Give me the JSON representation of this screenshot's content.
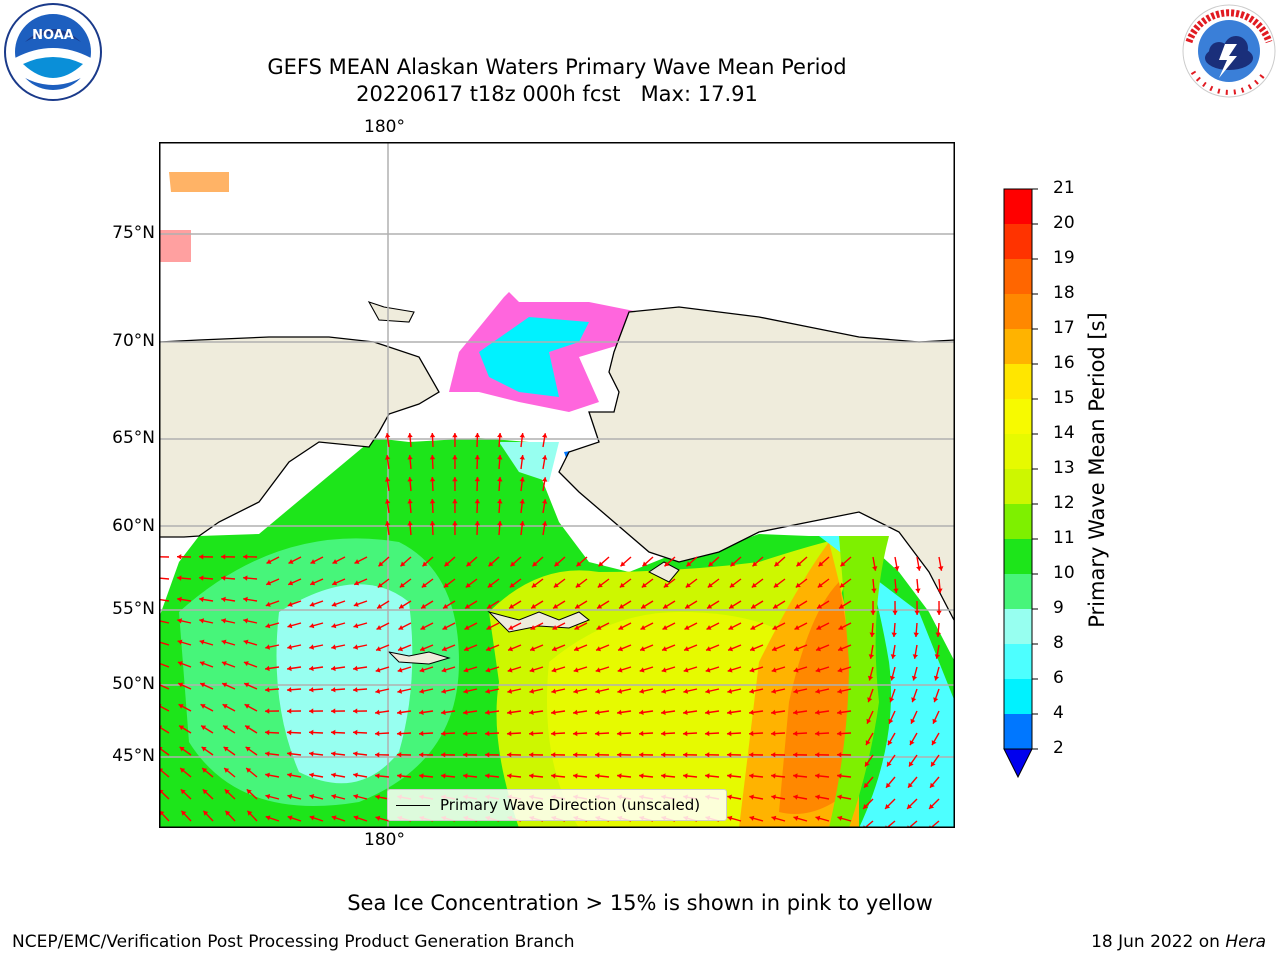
{
  "title": {
    "line1": "GEFS MEAN Alaskan Waters Primary Wave Mean Period",
    "line2": "20220617 t18z 000h fcst   Max: 17.91"
  },
  "logos": {
    "left": "NOAA",
    "right": "NATIONAL WEATHER SERVICE"
  },
  "map": {
    "top_lon_label": "180°",
    "bottom_lon_label": "180°",
    "lat_labels": [
      "75°N",
      "70°N",
      "65°N",
      "60°N",
      "55°N",
      "50°N",
      "45°N"
    ],
    "land_color": "#efecdc",
    "arrow_color": "#ff0000",
    "legend_text": "Primary Wave Direction (unscaled)"
  },
  "colorbar": {
    "title": "Primary Wave Mean Period [s]",
    "ticks": [
      "21",
      "20",
      "19",
      "18",
      "17",
      "16",
      "15",
      "14",
      "13",
      "12",
      "11",
      "10",
      "9",
      "8",
      "6",
      "4",
      "2"
    ],
    "colors": [
      "#ff0000",
      "#ff3300",
      "#ff6600",
      "#ff8800",
      "#ffb300",
      "#ffe600",
      "#f7fa00",
      "#e6fa00",
      "#cdf700",
      "#7ef000",
      "#1de51a",
      "#47f57a",
      "#97fff0",
      "#4dffff",
      "#00f2ff",
      "#0077ff",
      "#0000ee"
    ]
  },
  "footnote": "Sea Ice Concentration > 15% is shown in pink to yellow",
  "footer": {
    "left": "NCEP/EMC/Verification Post Processing Product Generation Branch",
    "right_date": "18 Jun 2022 on ",
    "right_host": "Hera"
  }
}
